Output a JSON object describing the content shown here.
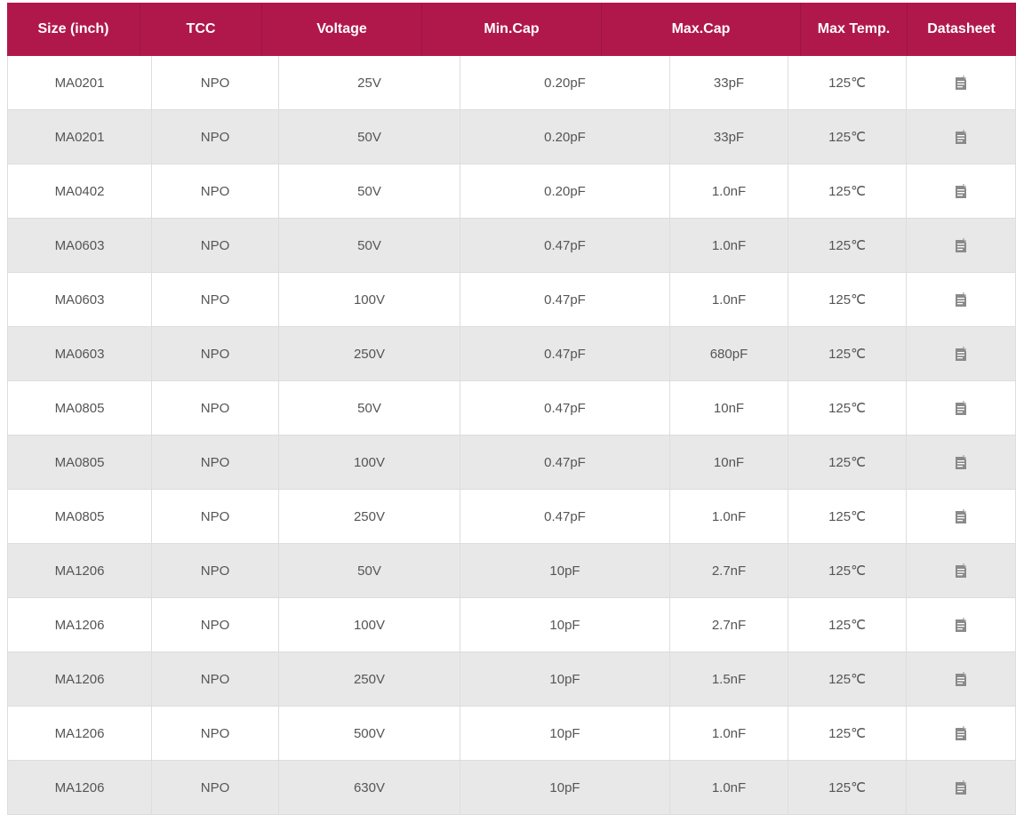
{
  "headers": [
    "Size (inch)",
    "TCC",
    "Voltage",
    "Min.Cap",
    "Max.Cap",
    "Max Temp.",
    "Datasheet"
  ],
  "rows": [
    [
      "MA0201",
      "NPO",
      "25V",
      "0.20pF",
      "33pF",
      "125℃"
    ],
    [
      "MA0201",
      "NPO",
      "50V",
      "0.20pF",
      "33pF",
      "125℃"
    ],
    [
      "MA0402",
      "NPO",
      "50V",
      "0.20pF",
      "1.0nF",
      "125℃"
    ],
    [
      "MA0603",
      "NPO",
      "50V",
      "0.47pF",
      "1.0nF",
      "125℃"
    ],
    [
      "MA0603",
      "NPO",
      "100V",
      "0.47pF",
      "1.0nF",
      "125℃"
    ],
    [
      "MA0603",
      "NPO",
      "250V",
      "0.47pF",
      "680pF",
      "125℃"
    ],
    [
      "MA0805",
      "NPO",
      "50V",
      "0.47pF",
      "10nF",
      "125℃"
    ],
    [
      "MA0805",
      "NPO",
      "100V",
      "0.47pF",
      "10nF",
      "125℃"
    ],
    [
      "MA0805",
      "NPO",
      "250V",
      "0.47pF",
      "1.0nF",
      "125℃"
    ],
    [
      "MA1206",
      "NPO",
      "50V",
      "10pF",
      "2.7nF",
      "125℃"
    ],
    [
      "MA1206",
      "NPO",
      "100V",
      "10pF",
      "2.7nF",
      "125℃"
    ],
    [
      "MA1206",
      "NPO",
      "250V",
      "10pF",
      "1.5nF",
      "125℃"
    ],
    [
      "MA1206",
      "NPO",
      "500V",
      "10pF",
      "1.0nF",
      "125℃"
    ],
    [
      "MA1206",
      "NPO",
      "630V",
      "10pF",
      "1.0nF",
      "125℃"
    ]
  ],
  "datasheet_icon": "document-icon",
  "colors": {
    "header_bg": "#b0184b",
    "alt_row": "#e8e8e8"
  }
}
